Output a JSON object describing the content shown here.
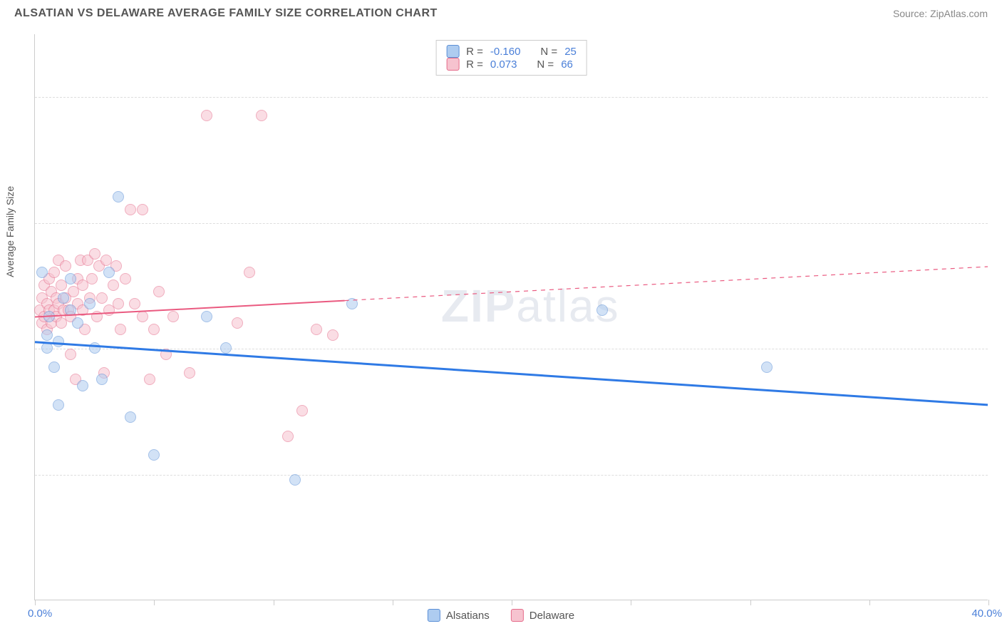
{
  "title": "ALSATIAN VS DELAWARE AVERAGE FAMILY SIZE CORRELATION CHART",
  "source": "Source: ZipAtlas.com",
  "watermark": "ZIPatlas",
  "yaxis_title": "Average Family Size",
  "chart": {
    "type": "scatter",
    "xlim": [
      0,
      40
    ],
    "ylim": [
      1.0,
      5.5
    ],
    "xticks": [
      0,
      5,
      10,
      15,
      20,
      25,
      30,
      35,
      40
    ],
    "yticks": [
      2.0,
      3.0,
      4.0,
      5.0
    ],
    "xlabel_min": "0.0%",
    "xlabel_max": "40.0%",
    "grid_color": "#dddddd",
    "axis_color": "#cccccc",
    "background": "#ffffff",
    "point_radius": 8,
    "point_opacity": 0.55,
    "series": [
      {
        "name": "Alsatians",
        "color_fill": "#aeccf0",
        "color_stroke": "#5b8fd6",
        "R": "-0.160",
        "N": "25",
        "trend": {
          "y_at_x0": 3.05,
          "y_at_x40": 2.55,
          "solid_until_x": 40,
          "color": "#2f7ae5",
          "width": 3
        },
        "points": [
          {
            "x": 0.3,
            "y": 3.6
          },
          {
            "x": 0.5,
            "y": 3.1
          },
          {
            "x": 0.5,
            "y": 3.0
          },
          {
            "x": 0.6,
            "y": 3.25
          },
          {
            "x": 0.8,
            "y": 2.85
          },
          {
            "x": 1.0,
            "y": 2.55
          },
          {
            "x": 1.2,
            "y": 3.4
          },
          {
            "x": 1.5,
            "y": 3.55
          },
          {
            "x": 1.5,
            "y": 3.3
          },
          {
            "x": 1.8,
            "y": 3.2
          },
          {
            "x": 2.0,
            "y": 2.7
          },
          {
            "x": 2.3,
            "y": 3.35
          },
          {
            "x": 2.5,
            "y": 3.0
          },
          {
            "x": 2.8,
            "y": 2.75
          },
          {
            "x": 3.1,
            "y": 3.6
          },
          {
            "x": 3.5,
            "y": 4.2
          },
          {
            "x": 4.0,
            "y": 2.45
          },
          {
            "x": 5.0,
            "y": 2.15
          },
          {
            "x": 7.2,
            "y": 3.25
          },
          {
            "x": 8.0,
            "y": 3.0
          },
          {
            "x": 10.9,
            "y": 1.95
          },
          {
            "x": 13.3,
            "y": 3.35
          },
          {
            "x": 23.8,
            "y": 3.3
          },
          {
            "x": 30.7,
            "y": 2.85
          },
          {
            "x": 1.0,
            "y": 3.05
          }
        ]
      },
      {
        "name": "Delaware",
        "color_fill": "#f6c3cf",
        "color_stroke": "#e56b8a",
        "R": "0.073",
        "N": "66",
        "trend": {
          "y_at_x0": 3.25,
          "y_at_x40": 3.65,
          "solid_until_x": 13,
          "color": "#ea5a80",
          "width": 2
        },
        "points": [
          {
            "x": 0.2,
            "y": 3.3
          },
          {
            "x": 0.3,
            "y": 3.2
          },
          {
            "x": 0.3,
            "y": 3.4
          },
          {
            "x": 0.4,
            "y": 3.5
          },
          {
            "x": 0.4,
            "y": 3.25
          },
          {
            "x": 0.5,
            "y": 3.35
          },
          {
            "x": 0.5,
            "y": 3.15
          },
          {
            "x": 0.6,
            "y": 3.55
          },
          {
            "x": 0.6,
            "y": 3.3
          },
          {
            "x": 0.7,
            "y": 3.45
          },
          {
            "x": 0.7,
            "y": 3.2
          },
          {
            "x": 0.8,
            "y": 3.6
          },
          {
            "x": 0.8,
            "y": 3.3
          },
          {
            "x": 0.9,
            "y": 3.25
          },
          {
            "x": 0.9,
            "y": 3.4
          },
          {
            "x": 1.0,
            "y": 3.7
          },
          {
            "x": 1.0,
            "y": 3.35
          },
          {
            "x": 1.1,
            "y": 3.2
          },
          {
            "x": 1.1,
            "y": 3.5
          },
          {
            "x": 1.2,
            "y": 3.3
          },
          {
            "x": 1.3,
            "y": 3.65
          },
          {
            "x": 1.3,
            "y": 3.4
          },
          {
            "x": 1.4,
            "y": 3.3
          },
          {
            "x": 1.5,
            "y": 3.25
          },
          {
            "x": 1.5,
            "y": 2.95
          },
          {
            "x": 1.6,
            "y": 3.45
          },
          {
            "x": 1.7,
            "y": 2.75
          },
          {
            "x": 1.8,
            "y": 3.55
          },
          {
            "x": 1.8,
            "y": 3.35
          },
          {
            "x": 1.9,
            "y": 3.7
          },
          {
            "x": 2.0,
            "y": 3.5
          },
          {
            "x": 2.0,
            "y": 3.3
          },
          {
            "x": 2.1,
            "y": 3.15
          },
          {
            "x": 2.2,
            "y": 3.7
          },
          {
            "x": 2.3,
            "y": 3.4
          },
          {
            "x": 2.4,
            "y": 3.55
          },
          {
            "x": 2.5,
            "y": 3.75
          },
          {
            "x": 2.6,
            "y": 3.25
          },
          {
            "x": 2.7,
            "y": 3.65
          },
          {
            "x": 2.8,
            "y": 3.4
          },
          {
            "x": 2.9,
            "y": 2.8
          },
          {
            "x": 3.0,
            "y": 3.7
          },
          {
            "x": 3.1,
            "y": 3.3
          },
          {
            "x": 3.3,
            "y": 3.5
          },
          {
            "x": 3.4,
            "y": 3.65
          },
          {
            "x": 3.5,
            "y": 3.35
          },
          {
            "x": 3.6,
            "y": 3.15
          },
          {
            "x": 3.8,
            "y": 3.55
          },
          {
            "x": 4.0,
            "y": 4.1
          },
          {
            "x": 4.2,
            "y": 3.35
          },
          {
            "x": 4.5,
            "y": 4.1
          },
          {
            "x": 4.5,
            "y": 3.25
          },
          {
            "x": 4.8,
            "y": 2.75
          },
          {
            "x": 5.0,
            "y": 3.15
          },
          {
            "x": 5.2,
            "y": 3.45
          },
          {
            "x": 5.5,
            "y": 2.95
          },
          {
            "x": 5.8,
            "y": 3.25
          },
          {
            "x": 6.5,
            "y": 2.8
          },
          {
            "x": 7.2,
            "y": 4.85
          },
          {
            "x": 8.5,
            "y": 3.2
          },
          {
            "x": 9.0,
            "y": 3.6
          },
          {
            "x": 9.5,
            "y": 4.85
          },
          {
            "x": 10.6,
            "y": 2.3
          },
          {
            "x": 11.8,
            "y": 3.15
          },
          {
            "x": 11.2,
            "y": 2.5
          },
          {
            "x": 12.5,
            "y": 3.1
          }
        ]
      }
    ]
  }
}
